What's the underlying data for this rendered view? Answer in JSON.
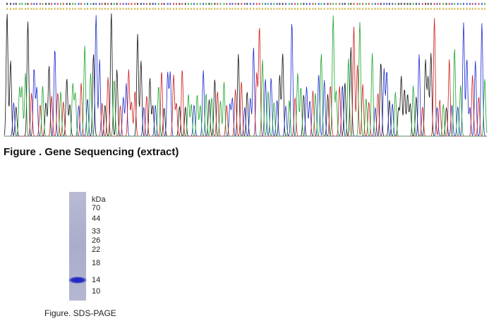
{
  "sequencing": {
    "caption": "Figure . Gene Sequencing (extract)"
  },
  "gel": {
    "unit": "kDa",
    "markers": [
      70,
      44,
      33,
      26,
      22,
      18,
      14,
      10
    ],
    "caption": "Figure. SDS-PAGE"
  }
}
